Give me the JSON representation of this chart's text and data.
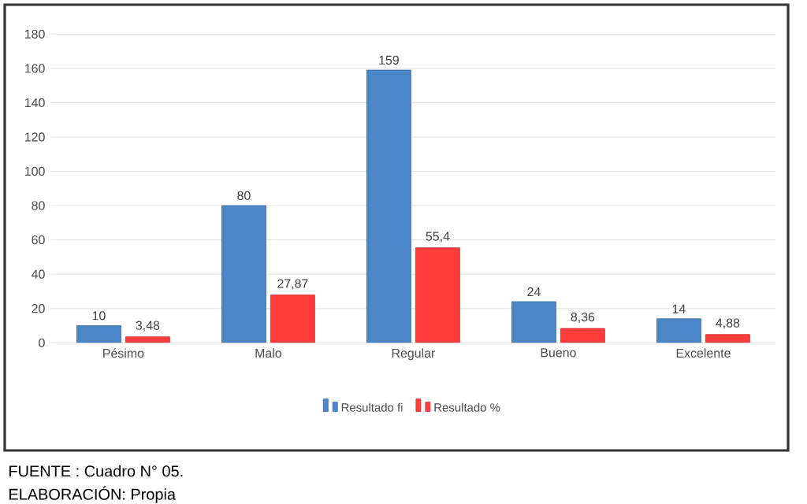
{
  "chart_data": {
    "type": "bar",
    "categories": [
      "Pésimo",
      "Malo",
      "Regular",
      "Bueno",
      "Excelente"
    ],
    "series": [
      {
        "name": "Resultado fi",
        "color": "#4a86c8",
        "values": [
          10,
          80,
          159,
          24,
          14
        ],
        "value_labels": [
          "10",
          "80",
          "159",
          "24",
          "14"
        ]
      },
      {
        "name": "Resultado %",
        "color": "#ff3c3c",
        "values": [
          3.48,
          27.87,
          55.4,
          8.36,
          4.88
        ],
        "value_labels": [
          "3,48",
          "27,87",
          "55,4",
          "8,36",
          "4,88"
        ]
      }
    ],
    "ylim": [
      0,
      180
    ],
    "yticks": [
      0,
      20,
      40,
      60,
      80,
      100,
      120,
      140,
      160,
      180
    ],
    "grid": "y",
    "legend": "bottom",
    "annotations": [
      "FUENTE           : Cuadro N° 05.",
      "ELABORACIÓN: Propia"
    ]
  }
}
